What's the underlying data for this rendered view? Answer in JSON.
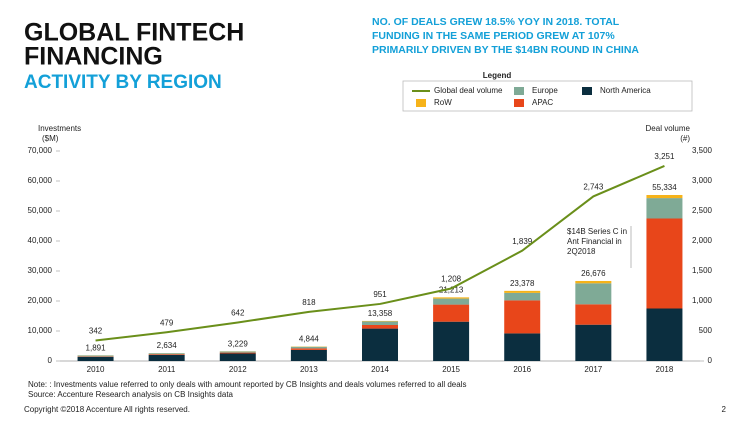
{
  "chart_data": {
    "type": "bar",
    "stacked": true,
    "title_lines": [
      "GLOBAL FINTECH",
      "FINANCING"
    ],
    "subtitle": "ACTIVITY BY REGION",
    "headline_lines": [
      "NO. OF DEALS GREW 18.5% YOY IN 2018. TOTAL",
      "FUNDING IN THE SAME PERIOD GREW AT 107%",
      "PRIMARILY DRIVEN BY THE $14BN ROUND IN CHINA"
    ],
    "legend_title": "Legend",
    "ylabel_lines": [
      "Investments",
      "($M)"
    ],
    "y2label_lines": [
      "Deal volume",
      "(#)"
    ],
    "categories": [
      "2010",
      "2011",
      "2012",
      "2013",
      "2014",
      "2015",
      "2016",
      "2017",
      "2018"
    ],
    "series": [
      {
        "name": "North America",
        "color": "#0b2e3f",
        "values": [
          1400,
          2000,
          2500,
          3700,
          10800,
          13100,
          9200,
          12100,
          17500
        ]
      },
      {
        "name": "APAC",
        "color": "#e8461a",
        "values": [
          150,
          250,
          300,
          500,
          1200,
          5700,
          11000,
          6800,
          30000
        ]
      },
      {
        "name": "Europe",
        "color": "#7faa96",
        "values": [
          300,
          350,
          380,
          550,
          1200,
          2000,
          2500,
          7000,
          6800
        ]
      },
      {
        "name": "RoW",
        "color": "#f6b31a",
        "values": [
          41,
          34,
          49,
          94,
          158,
          413,
          678,
          776,
          1034
        ]
      },
      {
        "name": "Global deal volume",
        "type": "line",
        "axis": "y2",
        "color": "#6a8f1a",
        "values": [
          342,
          479,
          642,
          818,
          951,
          1208,
          1839,
          2743,
          3251
        ],
        "value_labels": [
          "342",
          "479",
          "642",
          "818",
          "951",
          "1,208",
          "1,839",
          "2,743",
          "3,251"
        ]
      }
    ],
    "total_labels": [
      "1,891",
      "2,634",
      "3,229",
      "4,844",
      "13,358",
      "21,213",
      "23,378",
      "26,676",
      "55,334"
    ],
    "ylim": [
      0,
      70000
    ],
    "yticks": [
      0,
      {
        "value": 10000,
        "label": "10,000"
      },
      {
        "value": 20000,
        "label": "20,000"
      },
      {
        "value": 30000,
        "label": "30,000"
      },
      {
        "value": 40000,
        "label": "40,000"
      },
      {
        "value": 50000,
        "label": "50,000"
      },
      {
        "value": 60000,
        "label": "60,000"
      },
      {
        "value": 70000,
        "label": "70,000"
      }
    ],
    "y2lim": [
      0,
      3500
    ],
    "y2ticks": [
      0,
      500,
      {
        "value": 1000,
        "label": "1,000"
      },
      {
        "value": 1500,
        "label": "1,500"
      },
      {
        "value": 2000,
        "label": "2,000"
      },
      {
        "value": 2500,
        "label": "2,500"
      },
      {
        "value": 3000,
        "label": "3,000"
      },
      {
        "value": 3500,
        "label": "3,500"
      }
    ],
    "annotation_lines": [
      "$14B Series C in",
      "Ant Financial in",
      "2Q2018"
    ],
    "notes": [
      "Note: : Investments value referred to only deals with amount reported by CB Insights and deals volumes referred to all deals",
      "Source: Accenture Research analysis on CB Insights data"
    ]
  },
  "footer": {
    "copyright": "Copyright ©2018 Accenture All rights reserved.",
    "page": "2"
  }
}
